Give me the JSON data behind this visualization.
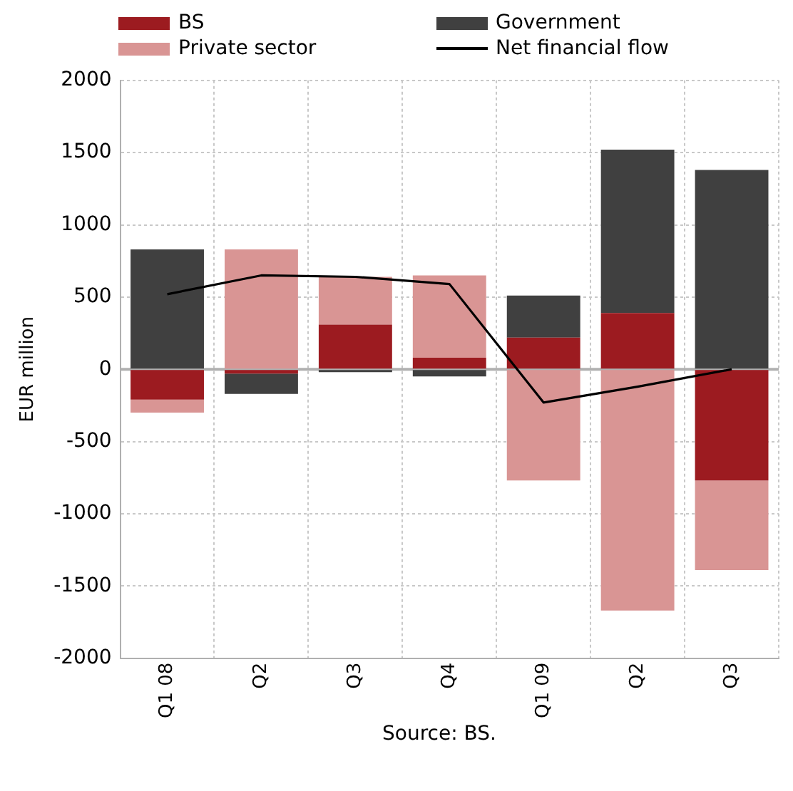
{
  "chart_data": {
    "type": "bar",
    "stacked": true,
    "ylabel": "EUR million",
    "categories": [
      "Q1 08",
      "Q2",
      "Q3",
      "Q4",
      "Q1 09",
      "Q2",
      "Q3"
    ],
    "series": [
      {
        "name": "BS",
        "color": "#9c1b20",
        "values": [
          -210,
          -30,
          310,
          80,
          220,
          390,
          -770
        ]
      },
      {
        "name": "Private sector",
        "color": "#d99594",
        "values": [
          -90,
          830,
          330,
          570,
          -770,
          -1670,
          -620
        ]
      },
      {
        "name": "Government",
        "color": "#404040",
        "values": [
          830,
          -140,
          -20,
          -50,
          290,
          1130,
          1380
        ]
      },
      {
        "name": "Net financial flow",
        "type": "line",
        "color": "#000000",
        "values": [
          520,
          650,
          640,
          590,
          -230,
          -120,
          0
        ]
      }
    ],
    "ylim": [
      -2000,
      2000
    ],
    "yticks": [
      -2000,
      -1500,
      -1000,
      -500,
      0,
      500,
      1000,
      1500,
      2000
    ],
    "grid": true,
    "legend": "top",
    "marker": "none",
    "line_style": "solid",
    "annotations": [
      "Source: BS."
    ]
  }
}
